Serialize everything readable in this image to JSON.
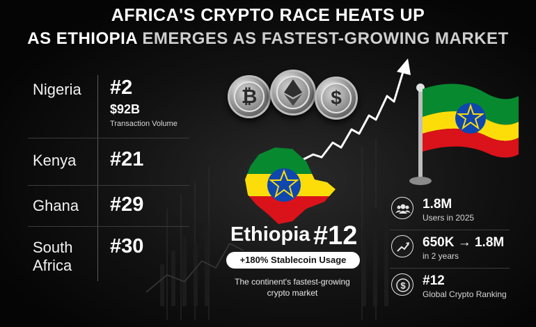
{
  "title": {
    "line1": "AFRICA'S CRYPTO RACE HEATS UP",
    "line2_pre": "AS ETHIOPIA ",
    "line2_highlight": "EMERGES AS FASTEST-GROWING MARKET"
  },
  "rankings": [
    {
      "country": "Nigeria",
      "rank": "#2",
      "volume": "$92B",
      "volume_label": "Transaction Volume"
    },
    {
      "country": "Kenya",
      "rank": "#21"
    },
    {
      "country": "Ghana",
      "rank": "#29"
    },
    {
      "country_line1": "South",
      "country_line2": "Africa",
      "rank": "#30"
    }
  ],
  "coins": [
    "bitcoin-icon",
    "ethereum-icon",
    "dollar-icon"
  ],
  "ethiopia": {
    "name": "Ethiopia",
    "rank": "#12",
    "badge": "+180% Stablecoin Usage",
    "desc_line1": "The continent's fastest-growing",
    "desc_line2": "crypto market"
  },
  "stats": [
    {
      "icon": "users-icon",
      "value": "1.8M",
      "label": "Users in 2025"
    },
    {
      "icon": "trend-up-icon",
      "value": "650K → 1.8M",
      "label": "in 2 years"
    },
    {
      "icon": "dollar-coin-icon",
      "value": "#12",
      "label": "Global Crypto Ranking"
    }
  ],
  "colors": {
    "flag_green": "#078930",
    "flag_yellow": "#fcdd09",
    "flag_red": "#da121a",
    "emblem_blue": "#0f47af",
    "star_yellow": "#fcdd09"
  }
}
